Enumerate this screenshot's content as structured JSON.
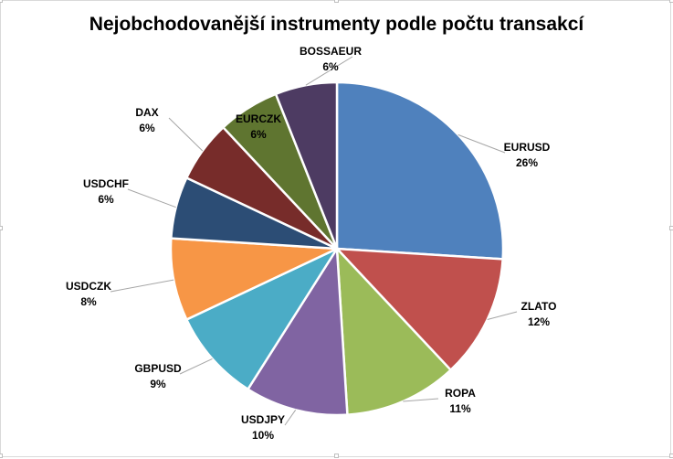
{
  "chart_data": {
    "type": "pie",
    "title": "Nejobchodovanější instrumenty podle počtu transakcí",
    "slices": [
      {
        "label": "EURUSD",
        "value": 26,
        "display": "26%",
        "color": "#4f81bd"
      },
      {
        "label": "ZLATO",
        "value": 12,
        "display": "12%",
        "color": "#c0504d"
      },
      {
        "label": "ROPA",
        "value": 11,
        "display": "11%",
        "color": "#9bbb59"
      },
      {
        "label": "USDJPY",
        "value": 10,
        "display": "10%",
        "color": "#8064a2"
      },
      {
        "label": "GBPUSD",
        "value": 9,
        "display": "9%",
        "color": "#4bacc6"
      },
      {
        "label": "USDCZK",
        "value": 8,
        "display": "8%",
        "color": "#f79646"
      },
      {
        "label": "USDCHF",
        "value": 6,
        "display": "6%",
        "color": "#2c4d75"
      },
      {
        "label": "DAX",
        "value": 6,
        "display": "6%",
        "color": "#772c2a"
      },
      {
        "label": "EURCZK",
        "value": 6,
        "display": "6%",
        "color": "#5f7530"
      },
      {
        "label": "BOSSAEUR",
        "value": 6,
        "display": "6%",
        "color": "#4d3b62"
      }
    ]
  }
}
